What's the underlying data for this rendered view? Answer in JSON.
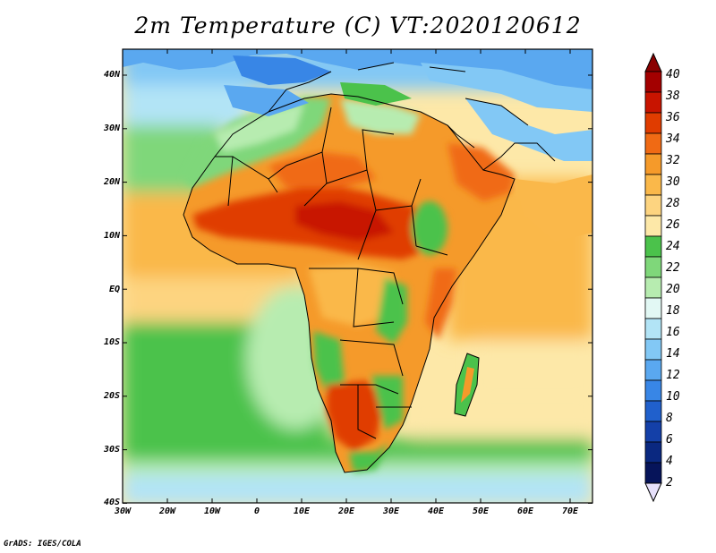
{
  "title": "2m Temperature (C) VT:2020120612",
  "credit": "GrADS: IGES/COLA",
  "map": {
    "lat_labels": [
      "40N",
      "30N",
      "20N",
      "10N",
      "EQ",
      "10S",
      "20S",
      "30S",
      "40S"
    ],
    "lon_labels": [
      "30W",
      "20W",
      "10W",
      "0",
      "10E",
      "20E",
      "30E",
      "40E",
      "50E",
      "60E",
      "70E"
    ],
    "lat_range": [
      -40,
      45
    ],
    "lon_range": [
      -30,
      75
    ],
    "field": "2m Temperature",
    "units": "C"
  },
  "colorbar": {
    "labels": [
      "40",
      "38",
      "36",
      "34",
      "32",
      "30",
      "28",
      "26",
      "24",
      "22",
      "20",
      "18",
      "16",
      "14",
      "12",
      "10",
      "8",
      "6",
      "4",
      "2"
    ],
    "colors": [
      "#a30000",
      "#c81400",
      "#e03c00",
      "#f06a14",
      "#f59a2a",
      "#fab84a",
      "#fdd480",
      "#fde8a8",
      "#4bc24b",
      "#7fd77a",
      "#b7ecb0",
      "#e2f8f4",
      "#b2e4f6",
      "#82c8f5",
      "#5aa8f0",
      "#3886e6",
      "#2060cc",
      "#1440a8",
      "#0a2880",
      "#06145a"
    ],
    "top_triangle_color": "#8a0000",
    "bottom_triangle_color": "#e6e0fa"
  }
}
